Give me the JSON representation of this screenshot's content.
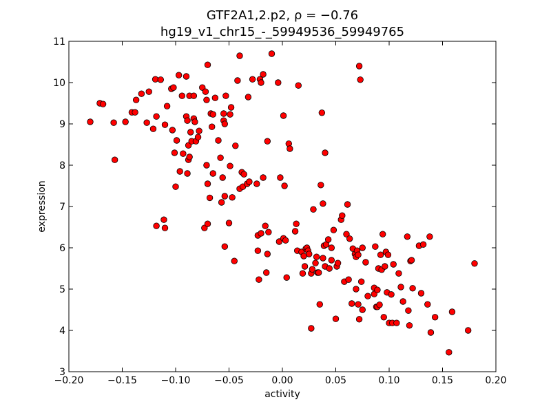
{
  "chart_data": {
    "type": "scatter",
    "title_line1": "GTF2A1,2.p2, ρ = −0.76",
    "title_line2": "hg19_v1_chr15_-_59949536_59949765",
    "xlabel": "activity",
    "ylabel": "expression",
    "xlim": [
      -0.2,
      0.2
    ],
    "ylim": [
      3,
      11
    ],
    "x_ticks": [
      "−0.20",
      "−0.15",
      "−0.10",
      "−0.05",
      "0.00",
      "0.05",
      "0.10",
      "0.15",
      "0.20"
    ],
    "y_ticks": [
      "3",
      "4",
      "5",
      "6",
      "7",
      "8",
      "9",
      "10",
      "11"
    ],
    "x_tick_values": [
      -0.2,
      -0.15,
      -0.1,
      -0.05,
      0.0,
      0.05,
      0.1,
      0.15,
      0.2
    ],
    "y_tick_values": [
      3,
      4,
      5,
      6,
      7,
      8,
      9,
      10,
      11
    ],
    "grid": false,
    "marker_color": "#ff0000",
    "marker_edge": "#000000",
    "points": [
      [
        -0.18,
        9.05
      ],
      [
        -0.171,
        9.5
      ],
      [
        -0.168,
        9.48
      ],
      [
        -0.158,
        9.03
      ],
      [
        -0.157,
        8.13
      ],
      [
        -0.147,
        9.05
      ],
      [
        -0.141,
        9.28
      ],
      [
        -0.138,
        9.28
      ],
      [
        -0.137,
        9.58
      ],
      [
        -0.132,
        9.73
      ],
      [
        -0.127,
        9.03
      ],
      [
        -0.125,
        9.78
      ],
      [
        -0.121,
        8.88
      ],
      [
        -0.119,
        10.08
      ],
      [
        -0.118,
        9.18
      ],
      [
        -0.118,
        6.53
      ],
      [
        -0.114,
        10.07
      ],
      [
        -0.111,
        6.68
      ],
      [
        -0.11,
        6.48
      ],
      [
        -0.11,
        8.98
      ],
      [
        -0.108,
        9.43
      ],
      [
        -0.104,
        9.85
      ],
      [
        -0.102,
        9.88
      ],
      [
        -0.103,
        8.85
      ],
      [
        -0.101,
        8.3
      ],
      [
        -0.1,
        7.48
      ],
      [
        -0.099,
        8.6
      ],
      [
        -0.097,
        10.18
      ],
      [
        -0.096,
        7.85
      ],
      [
        -0.094,
        9.68
      ],
      [
        -0.093,
        8.28
      ],
      [
        -0.09,
        10.15
      ],
      [
        -0.09,
        9.18
      ],
      [
        -0.089,
        9.08
      ],
      [
        -0.089,
        7.8
      ],
      [
        -0.088,
        8.13
      ],
      [
        -0.088,
        8.48
      ],
      [
        -0.087,
        8.2
      ],
      [
        -0.087,
        9.68
      ],
      [
        -0.086,
        8.8
      ],
      [
        -0.085,
        8.58
      ],
      [
        -0.083,
        9.13
      ],
      [
        -0.083,
        9.68
      ],
      [
        -0.082,
        9.05
      ],
      [
        -0.081,
        8.58
      ],
      [
        -0.079,
        8.68
      ],
      [
        -0.078,
        8.83
      ],
      [
        -0.075,
        9.88
      ],
      [
        -0.073,
        6.48
      ],
      [
        -0.072,
        9.78
      ],
      [
        -0.071,
        8.0
      ],
      [
        -0.07,
        6.58
      ],
      [
        -0.07,
        10.43
      ],
      [
        -0.071,
        9.58
      ],
      [
        -0.07,
        7.55
      ],
      [
        -0.068,
        7.21
      ],
      [
        -0.067,
        9.25
      ],
      [
        -0.066,
        8.93
      ],
      [
        -0.065,
        7.8
      ],
      [
        -0.065,
        9.23
      ],
      [
        -0.063,
        9.63
      ],
      [
        -0.06,
        8.6
      ],
      [
        -0.058,
        8.18
      ],
      [
        -0.057,
        7.1
      ],
      [
        -0.056,
        7.7
      ],
      [
        -0.055,
        9.25
      ],
      [
        -0.055,
        9.08
      ],
      [
        -0.054,
        9.0
      ],
      [
        -0.054,
        6.03
      ],
      [
        -0.053,
        9.68
      ],
      [
        -0.054,
        7.25
      ],
      [
        -0.05,
        6.6
      ],
      [
        -0.049,
        9.23
      ],
      [
        -0.049,
        7.98
      ],
      [
        -0.048,
        9.4
      ],
      [
        -0.047,
        7.22
      ],
      [
        -0.045,
        5.68
      ],
      [
        -0.044,
        8.47
      ],
      [
        -0.042,
        10.05
      ],
      [
        -0.04,
        10.65
      ],
      [
        -0.04,
        7.43
      ],
      [
        -0.038,
        7.83
      ],
      [
        -0.037,
        7.48
      ],
      [
        -0.036,
        7.78
      ],
      [
        -0.033,
        7.55
      ],
      [
        -0.032,
        9.65
      ],
      [
        -0.031,
        7.6
      ],
      [
        -0.028,
        10.08
      ],
      [
        -0.024,
        7.55
      ],
      [
        -0.023,
        6.3
      ],
      [
        -0.023,
        5.93
      ],
      [
        -0.022,
        5.23
      ],
      [
        -0.021,
        10.08
      ],
      [
        -0.02,
        10.0
      ],
      [
        -0.02,
        6.35
      ],
      [
        -0.018,
        10.2
      ],
      [
        -0.018,
        7.7
      ],
      [
        -0.016,
        6.53
      ],
      [
        -0.015,
        5.4
      ],
      [
        -0.014,
        5.85
      ],
      [
        -0.014,
        8.58
      ],
      [
        -0.013,
        6.38
      ],
      [
        -0.01,
        10.7
      ],
      [
        -0.004,
        10.0
      ],
      [
        -0.003,
        6.15
      ],
      [
        -0.002,
        7.7
      ],
      [
        0.001,
        9.2
      ],
      [
        0.001,
        6.23
      ],
      [
        0.002,
        7.5
      ],
      [
        0.003,
        6.18
      ],
      [
        0.004,
        5.28
      ],
      [
        0.006,
        8.52
      ],
      [
        0.007,
        8.4
      ],
      [
        0.012,
        6.4
      ],
      [
        0.013,
        6.58
      ],
      [
        0.014,
        5.93
      ],
      [
        0.015,
        9.93
      ],
      [
        0.018,
        5.9
      ],
      [
        0.019,
        5.38
      ],
      [
        0.02,
        5.8
      ],
      [
        0.021,
        5.55
      ],
      [
        0.022,
        5.98
      ],
      [
        0.023,
        6.0
      ],
      [
        0.024,
        5.93
      ],
      [
        0.025,
        5.85
      ],
      [
        0.027,
        4.05
      ],
      [
        0.027,
        5.38
      ],
      [
        0.028,
        5.48
      ],
      [
        0.029,
        6.93
      ],
      [
        0.031,
        5.63
      ],
      [
        0.032,
        5.78
      ],
      [
        0.033,
        5.4
      ],
      [
        0.034,
        5.4
      ],
      [
        0.035,
        4.63
      ],
      [
        0.036,
        7.52
      ],
      [
        0.037,
        9.27
      ],
      [
        0.038,
        7.07
      ],
      [
        0.038,
        5.75
      ],
      [
        0.039,
        6.05
      ],
      [
        0.04,
        5.55
      ],
      [
        0.04,
        8.3
      ],
      [
        0.041,
        6.08
      ],
      [
        0.043,
        6.2
      ],
      [
        0.044,
        5.5
      ],
      [
        0.046,
        5.7
      ],
      [
        0.046,
        6.0
      ],
      [
        0.048,
        6.43
      ],
      [
        0.05,
        4.28
      ],
      [
        0.051,
        5.55
      ],
      [
        0.052,
        5.63
      ],
      [
        0.055,
        6.68
      ],
      [
        0.056,
        6.78
      ],
      [
        0.058,
        5.18
      ],
      [
        0.06,
        6.33
      ],
      [
        0.061,
        7.05
      ],
      [
        0.062,
        5.23
      ],
      [
        0.063,
        6.22
      ],
      [
        0.065,
        4.65
      ],
      [
        0.066,
        5.98
      ],
      [
        0.068,
        5.85
      ],
      [
        0.069,
        5.78
      ],
      [
        0.069,
        5.0
      ],
      [
        0.07,
        5.93
      ],
      [
        0.071,
        5.83
      ],
      [
        0.071,
        4.63
      ],
      [
        0.072,
        4.27
      ],
      [
        0.072,
        10.4
      ],
      [
        0.073,
        10.07
      ],
      [
        0.074,
        5.18
      ],
      [
        0.075,
        6.0
      ],
      [
        0.075,
        4.5
      ],
      [
        0.078,
        5.65
      ],
      [
        0.08,
        4.83
      ],
      [
        0.086,
        5.03
      ],
      [
        0.086,
        4.88
      ],
      [
        0.087,
        6.03
      ],
      [
        0.088,
        4.57
      ],
      [
        0.089,
        4.98
      ],
      [
        0.089,
        4.57
      ],
      [
        0.09,
        5.5
      ],
      [
        0.091,
        4.62
      ],
      [
        0.092,
        5.83
      ],
      [
        0.093,
        5.47
      ],
      [
        0.094,
        6.33
      ],
      [
        0.095,
        4.32
      ],
      [
        0.096,
        5.55
      ],
      [
        0.097,
        5.9
      ],
      [
        0.098,
        4.92
      ],
      [
        0.099,
        5.83
      ],
      [
        0.1,
        4.18
      ],
      [
        0.102,
        4.87
      ],
      [
        0.103,
        4.18
      ],
      [
        0.104,
        5.6
      ],
      [
        0.107,
        4.18
      ],
      [
        0.109,
        5.38
      ],
      [
        0.111,
        5.05
      ],
      [
        0.113,
        4.7
      ],
      [
        0.117,
        6.27
      ],
      [
        0.118,
        4.48
      ],
      [
        0.119,
        4.12
      ],
      [
        0.12,
        5.68
      ],
      [
        0.121,
        5.7
      ],
      [
        0.122,
        5.02
      ],
      [
        0.128,
        6.05
      ],
      [
        0.13,
        4.9
      ],
      [
        0.132,
        6.08
      ],
      [
        0.136,
        4.63
      ],
      [
        0.138,
        6.27
      ],
      [
        0.139,
        3.95
      ],
      [
        0.143,
        4.32
      ],
      [
        0.156,
        3.47
      ],
      [
        0.159,
        4.45
      ],
      [
        0.174,
        4.0
      ],
      [
        0.18,
        5.62
      ]
    ]
  }
}
